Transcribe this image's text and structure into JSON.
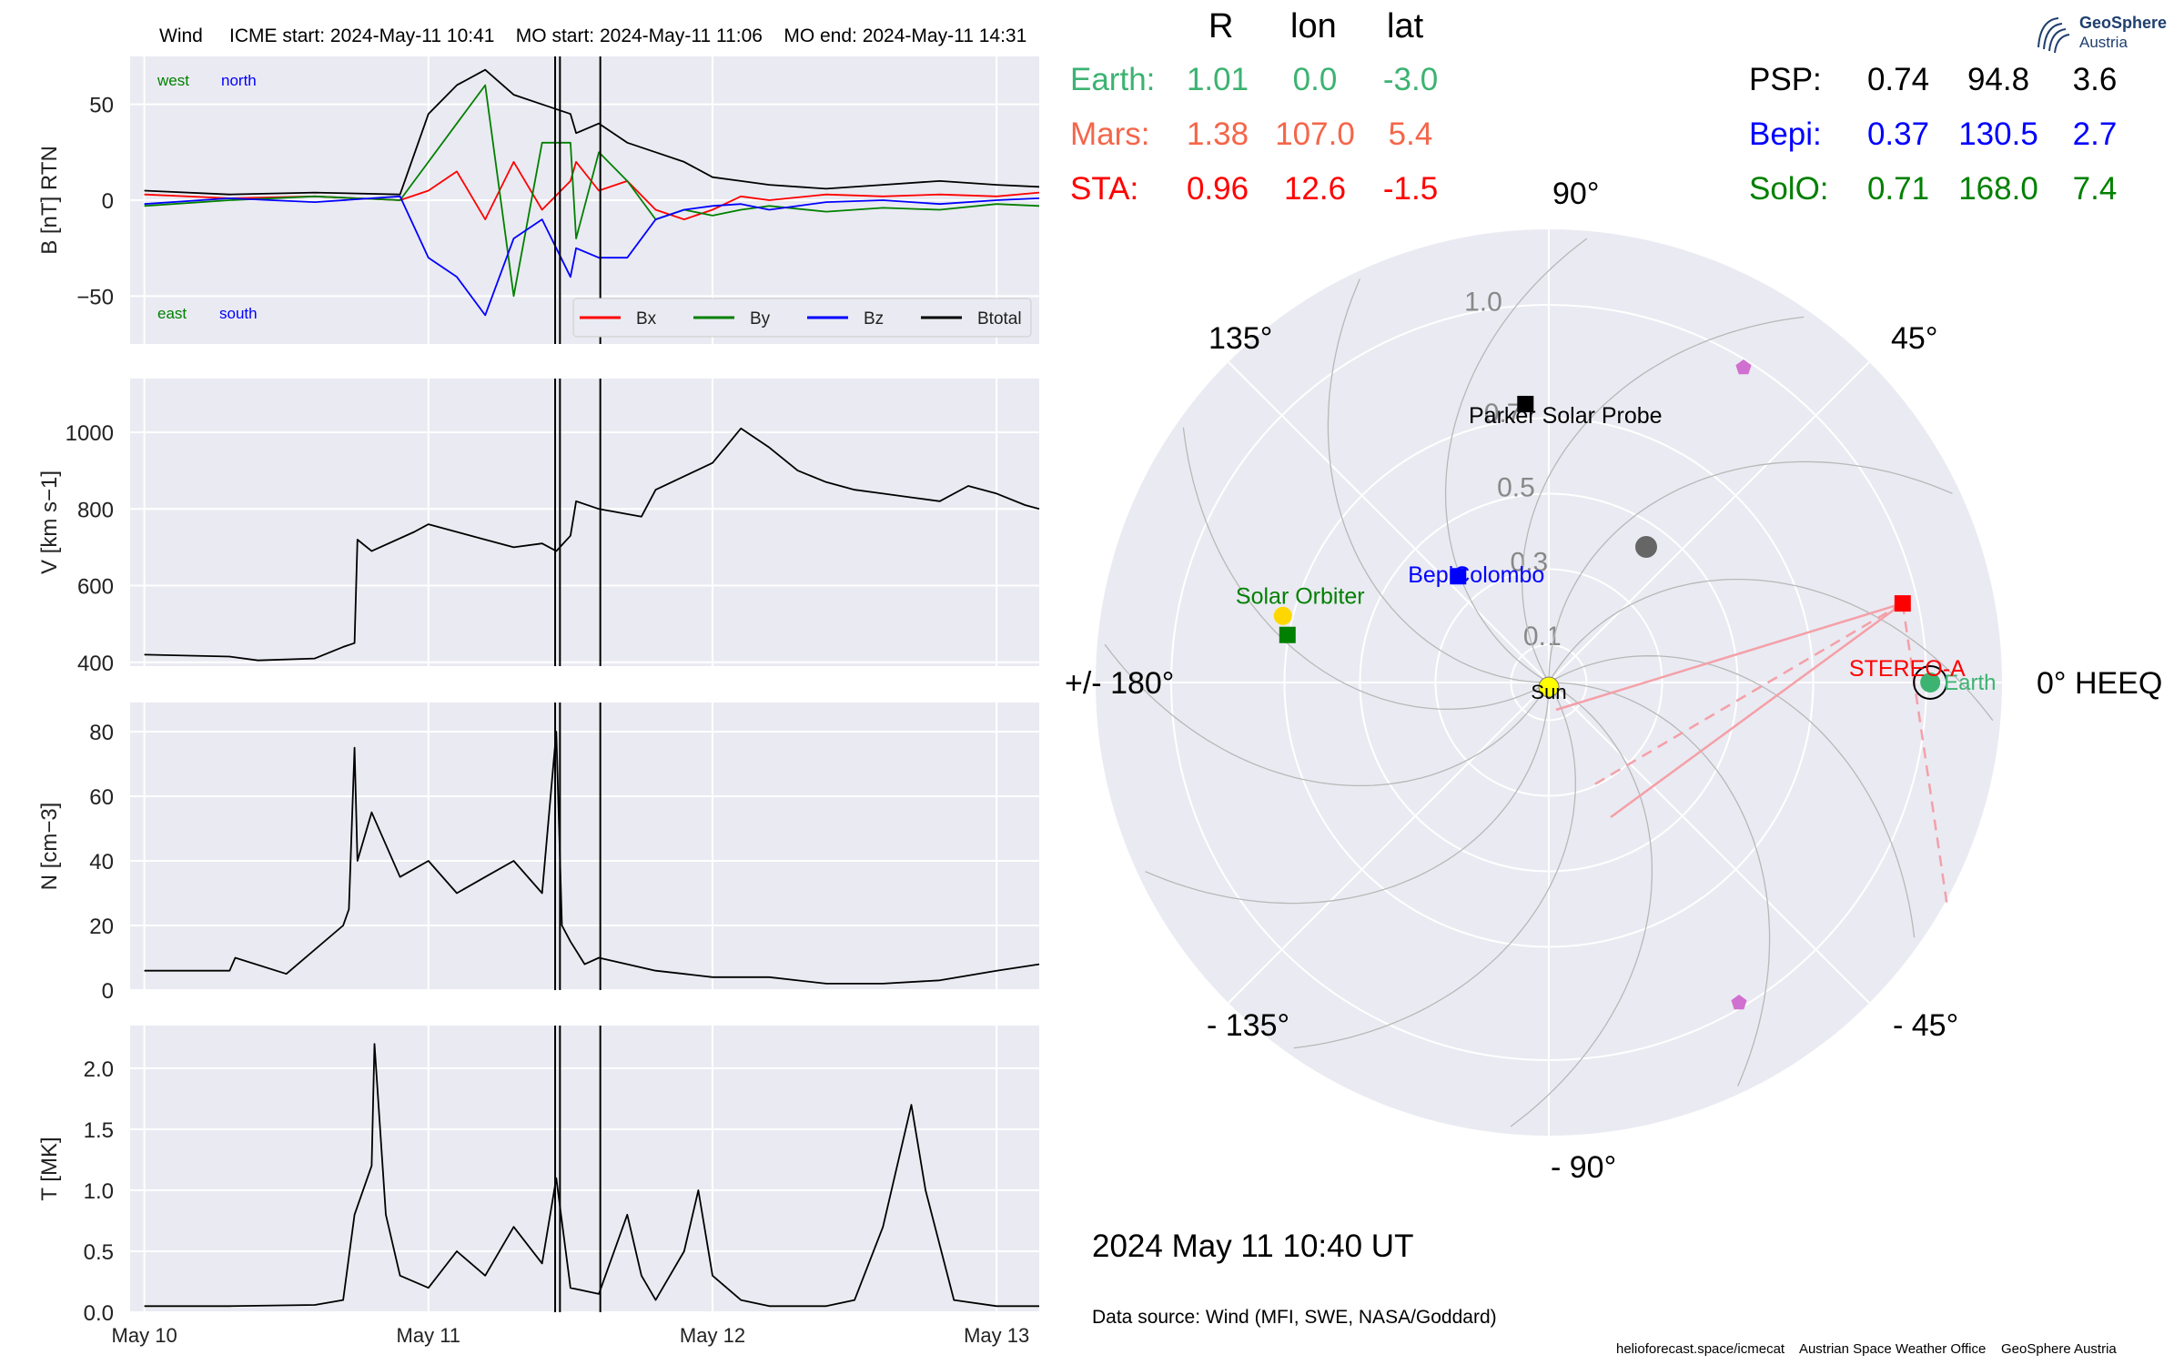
{
  "header": {
    "spacecraft": "Wind",
    "icme_start": "ICME start: 2024-May-11 10:41",
    "mo_start": "MO start: 2024-May-11 11:06",
    "mo_end": "MO end: 2024-May-11 14:31"
  },
  "logo": {
    "name": "GeoSphere",
    "sub": "Austria"
  },
  "position_table": {
    "headers": [
      "R",
      "lon",
      "lat"
    ],
    "left_rows": [
      {
        "name": "Earth:",
        "R": "1.01",
        "lon": "0.0",
        "lat": "-3.0",
        "color": "#3cb371"
      },
      {
        "name": "Mars:",
        "R": "1.38",
        "lon": "107.0",
        "lat": "5.4",
        "color": "#f4664a"
      },
      {
        "name": "STA:",
        "R": "0.96",
        "lon": "12.6",
        "lat": "-1.5",
        "color": "#ff0000"
      }
    ],
    "right_rows": [
      {
        "name": "PSP:",
        "R": "0.74",
        "lon": "94.8",
        "lat": "3.6",
        "color": "#000000"
      },
      {
        "name": "Bepi:",
        "R": "0.37",
        "lon": "130.5",
        "lat": "2.7",
        "color": "#0000ff"
      },
      {
        "name": "SolO:",
        "R": "0.71",
        "lon": "168.0",
        "lat": "7.4",
        "color": "#008000"
      }
    ]
  },
  "polar": {
    "angle_labels": {
      "deg0": "0° HEEQ",
      "deg45": "45°",
      "deg90": "90°",
      "deg135": "135°",
      "deg180": "+/- 180°",
      "degm135": "- 135°",
      "degm90": "- 90°",
      "degm45": "- 45°"
    },
    "radial_labels": [
      "0.1",
      "0.3",
      "0.5",
      "0.7",
      "1.0"
    ],
    "radial_values": [
      0.1,
      0.3,
      0.5,
      0.7,
      1.0
    ],
    "bodies": [
      {
        "id": "sun",
        "label": "Sun",
        "r": 0,
        "lon": 0,
        "color": "#ffff00"
      },
      {
        "id": "earth",
        "label": "Earth",
        "r": 1.01,
        "lon": 0.0,
        "color": "#3cb371"
      },
      {
        "id": "sta",
        "label": "STEREO-A",
        "r": 0.96,
        "lon": 12.6,
        "color": "#ff0000"
      },
      {
        "id": "psp",
        "label": "Parker Solar Probe",
        "r": 0.74,
        "lon": 94.8,
        "color": "#000000"
      },
      {
        "id": "bepi",
        "label": "BepiColombo",
        "r": 0.37,
        "lon": 130.5,
        "color": "#0000ff"
      },
      {
        "id": "solo",
        "label": "Solar Orbiter",
        "r": 0.71,
        "lon": 168.0,
        "color": "#008000"
      }
    ]
  },
  "timestamp": "2024 May 11  10:40 UT",
  "datasource": "Data source: Wind (MFI, SWE, NASA/Goddard)",
  "footer": {
    "url": "helioforecast.space/icmecat",
    "office": "Austrian Space Weather Office",
    "org": "GeoSphere Austria"
  },
  "chart_data": [
    {
      "type": "line",
      "ylabel": "B [nT] RTN",
      "ylim": [
        -75,
        75
      ],
      "yticks": [
        "50",
        "0",
        "−50"
      ],
      "annotations": [
        "west",
        "north",
        "east",
        "south"
      ],
      "legend": [
        "Bx",
        "By",
        "Bz",
        "Btotal"
      ],
      "series": [
        {
          "name": "Bx",
          "color": "#ff0000",
          "x": [
            0,
            0.3,
            0.6,
            0.9,
            1.0,
            1.1,
            1.2,
            1.3,
            1.4,
            1.5,
            1.52,
            1.6,
            1.7,
            1.8,
            1.9,
            2.0,
            2.1,
            2.2,
            2.4,
            2.6,
            2.8,
            3.0,
            3.15
          ],
          "y": [
            3,
            1,
            2,
            0,
            5,
            15,
            -10,
            20,
            -5,
            10,
            20,
            5,
            10,
            -5,
            -10,
            -5,
            2,
            0,
            3,
            2,
            3,
            2,
            4
          ]
        },
        {
          "name": "By",
          "color": "#008000",
          "x": [
            0,
            0.3,
            0.6,
            0.9,
            1.0,
            1.1,
            1.2,
            1.3,
            1.4,
            1.5,
            1.52,
            1.6,
            1.7,
            1.8,
            1.9,
            2.0,
            2.1,
            2.2,
            2.4,
            2.6,
            2.8,
            3.0,
            3.15
          ],
          "y": [
            -3,
            0,
            2,
            0,
            20,
            40,
            60,
            -50,
            30,
            30,
            -20,
            25,
            10,
            -10,
            -5,
            -8,
            -5,
            -3,
            -6,
            -4,
            -5,
            -2,
            -3
          ]
        },
        {
          "name": "Bz",
          "color": "#0000ff",
          "x": [
            0,
            0.3,
            0.6,
            0.9,
            1.0,
            1.1,
            1.2,
            1.3,
            1.4,
            1.5,
            1.52,
            1.6,
            1.7,
            1.8,
            1.9,
            2.0,
            2.1,
            2.2,
            2.4,
            2.6,
            2.8,
            3.0,
            3.15
          ],
          "y": [
            -2,
            1,
            -1,
            2,
            -30,
            -40,
            -60,
            -20,
            -10,
            -40,
            -25,
            -30,
            -30,
            -10,
            -5,
            -3,
            -2,
            -5,
            -1,
            0,
            -2,
            0,
            1
          ]
        },
        {
          "name": "Btotal",
          "color": "#000000",
          "x": [
            0,
            0.3,
            0.6,
            0.9,
            1.0,
            1.1,
            1.2,
            1.3,
            1.4,
            1.5,
            1.52,
            1.6,
            1.7,
            1.8,
            1.9,
            2.0,
            2.1,
            2.2,
            2.4,
            2.6,
            2.8,
            3.0,
            3.15
          ],
          "y": [
            5,
            3,
            4,
            3,
            45,
            60,
            68,
            55,
            50,
            45,
            35,
            40,
            30,
            25,
            20,
            12,
            10,
            8,
            6,
            8,
            10,
            8,
            7
          ]
        }
      ]
    },
    {
      "type": "line",
      "ylabel": "V [km s−1]",
      "ylim": [
        390,
        1140
      ],
      "yticks": [
        "1000",
        "800",
        "600",
        "400"
      ],
      "series": [
        {
          "name": "V",
          "color": "#000000",
          "x": [
            0,
            0.3,
            0.4,
            0.6,
            0.7,
            0.74,
            0.75,
            0.8,
            0.95,
            1.0,
            1.2,
            1.3,
            1.4,
            1.45,
            1.5,
            1.52,
            1.6,
            1.75,
            1.8,
            2.0,
            2.1,
            2.2,
            2.3,
            2.4,
            2.5,
            2.6,
            2.7,
            2.8,
            2.9,
            3.0,
            3.1,
            3.15
          ],
          "y": [
            420,
            415,
            405,
            410,
            440,
            450,
            720,
            690,
            740,
            760,
            720,
            700,
            710,
            690,
            730,
            820,
            800,
            780,
            850,
            920,
            1010,
            960,
            900,
            870,
            850,
            840,
            830,
            820,
            860,
            840,
            810,
            800
          ]
        }
      ]
    },
    {
      "type": "line",
      "ylabel": "N [cm−3]",
      "ylim": [
        0,
        89
      ],
      "yticks": [
        "80",
        "60",
        "40",
        "20",
        "0"
      ],
      "series": [
        {
          "name": "N",
          "color": "#000000",
          "x": [
            0,
            0.3,
            0.32,
            0.5,
            0.7,
            0.72,
            0.74,
            0.75,
            0.8,
            0.9,
            1.0,
            1.1,
            1.2,
            1.3,
            1.4,
            1.45,
            1.47,
            1.5,
            1.55,
            1.6,
            1.7,
            1.8,
            1.9,
            2.0,
            2.1,
            2.2,
            2.4,
            2.6,
            2.8,
            3.0,
            3.15
          ],
          "y": [
            6,
            6,
            10,
            5,
            20,
            25,
            75,
            40,
            55,
            35,
            40,
            30,
            35,
            40,
            30,
            80,
            20,
            15,
            8,
            10,
            8,
            6,
            5,
            4,
            4,
            4,
            2,
            2,
            3,
            6,
            8
          ]
        }
      ]
    },
    {
      "type": "line",
      "ylabel": "T [MK]",
      "ylim": [
        0,
        2.35
      ],
      "yticks": [
        "2.0",
        "1.5",
        "1.0",
        "0.5",
        "0.0"
      ],
      "series": [
        {
          "name": "T",
          "color": "#000000",
          "x": [
            0,
            0.3,
            0.6,
            0.7,
            0.74,
            0.8,
            0.81,
            0.85,
            0.9,
            1.0,
            1.1,
            1.2,
            1.3,
            1.4,
            1.45,
            1.5,
            1.6,
            1.7,
            1.75,
            1.8,
            1.9,
            1.95,
            2.0,
            2.1,
            2.2,
            2.4,
            2.5,
            2.6,
            2.65,
            2.7,
            2.75,
            2.85,
            3.0,
            3.15
          ],
          "y": [
            0.05,
            0.05,
            0.06,
            0.1,
            0.8,
            1.2,
            2.2,
            0.8,
            0.3,
            0.2,
            0.5,
            0.3,
            0.7,
            0.4,
            1.1,
            0.2,
            0.15,
            0.8,
            0.3,
            0.1,
            0.5,
            1.0,
            0.3,
            0.1,
            0.05,
            0.05,
            0.1,
            0.7,
            1.2,
            1.7,
            1.0,
            0.1,
            0.05,
            0.05
          ]
        }
      ]
    }
  ],
  "x_axis": {
    "ticks": [
      "May 10",
      "May 11",
      "May 12",
      "May 13"
    ],
    "tick_values": [
      0,
      1,
      2,
      3
    ],
    "xlim": [
      -0.05,
      3.15
    ],
    "event_lines": [
      1.446,
      1.463,
      1.605
    ]
  }
}
